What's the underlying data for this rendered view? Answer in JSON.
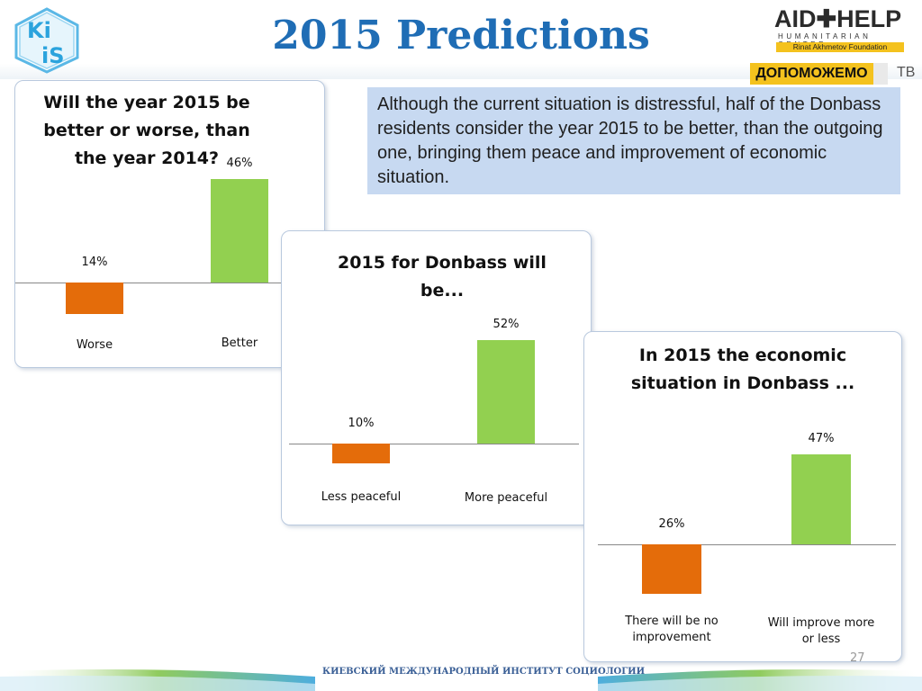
{
  "title": "2015 Predictions",
  "logos": {
    "kiis": "Ki iS",
    "aid_main": "AID✚HELP",
    "aid_sub": "HUMANITARIAN CENTER",
    "aid_foundation": "Rinat Akhmetov Foundation",
    "dopomozhemo": "ДОПОМОЖЕМО",
    "tv": "ТВ"
  },
  "textbox": "Although the current situation is distressful, half of the Donbass residents consider the year 2015 to be better, than the outgoing one, bringing them peace and improvement of economic situation.",
  "footer": {
    "institute": "КИЕВСКИЙ МЕЖДУНАРОДНЫЙ ИНСТИТУТ СОЦИОЛОГИИ",
    "page": "27"
  },
  "colors": {
    "negative": "#e46c0a",
    "positive": "#92d050",
    "title": "#1f6db5"
  },
  "chart_data": [
    {
      "type": "bar",
      "title": "Will the year 2015 be better or worse, than the year 2014?",
      "categories": [
        "Worse",
        "Better"
      ],
      "values": [
        -14,
        46
      ],
      "labels": [
        "14%",
        "46%"
      ],
      "unit": "%"
    },
    {
      "type": "bar",
      "title": "2015 for Donbass will be...",
      "categories": [
        "Less peaceful",
        "More peaceful"
      ],
      "values": [
        -10,
        52
      ],
      "labels": [
        "10%",
        "52%"
      ],
      "unit": "%"
    },
    {
      "type": "bar",
      "title": "In 2015 the economic situation in Donbass ...",
      "categories": [
        "There will be no improvement",
        "Will improve more or less"
      ],
      "values": [
        -26,
        47
      ],
      "labels": [
        "26%",
        "47%"
      ],
      "unit": "%"
    }
  ]
}
